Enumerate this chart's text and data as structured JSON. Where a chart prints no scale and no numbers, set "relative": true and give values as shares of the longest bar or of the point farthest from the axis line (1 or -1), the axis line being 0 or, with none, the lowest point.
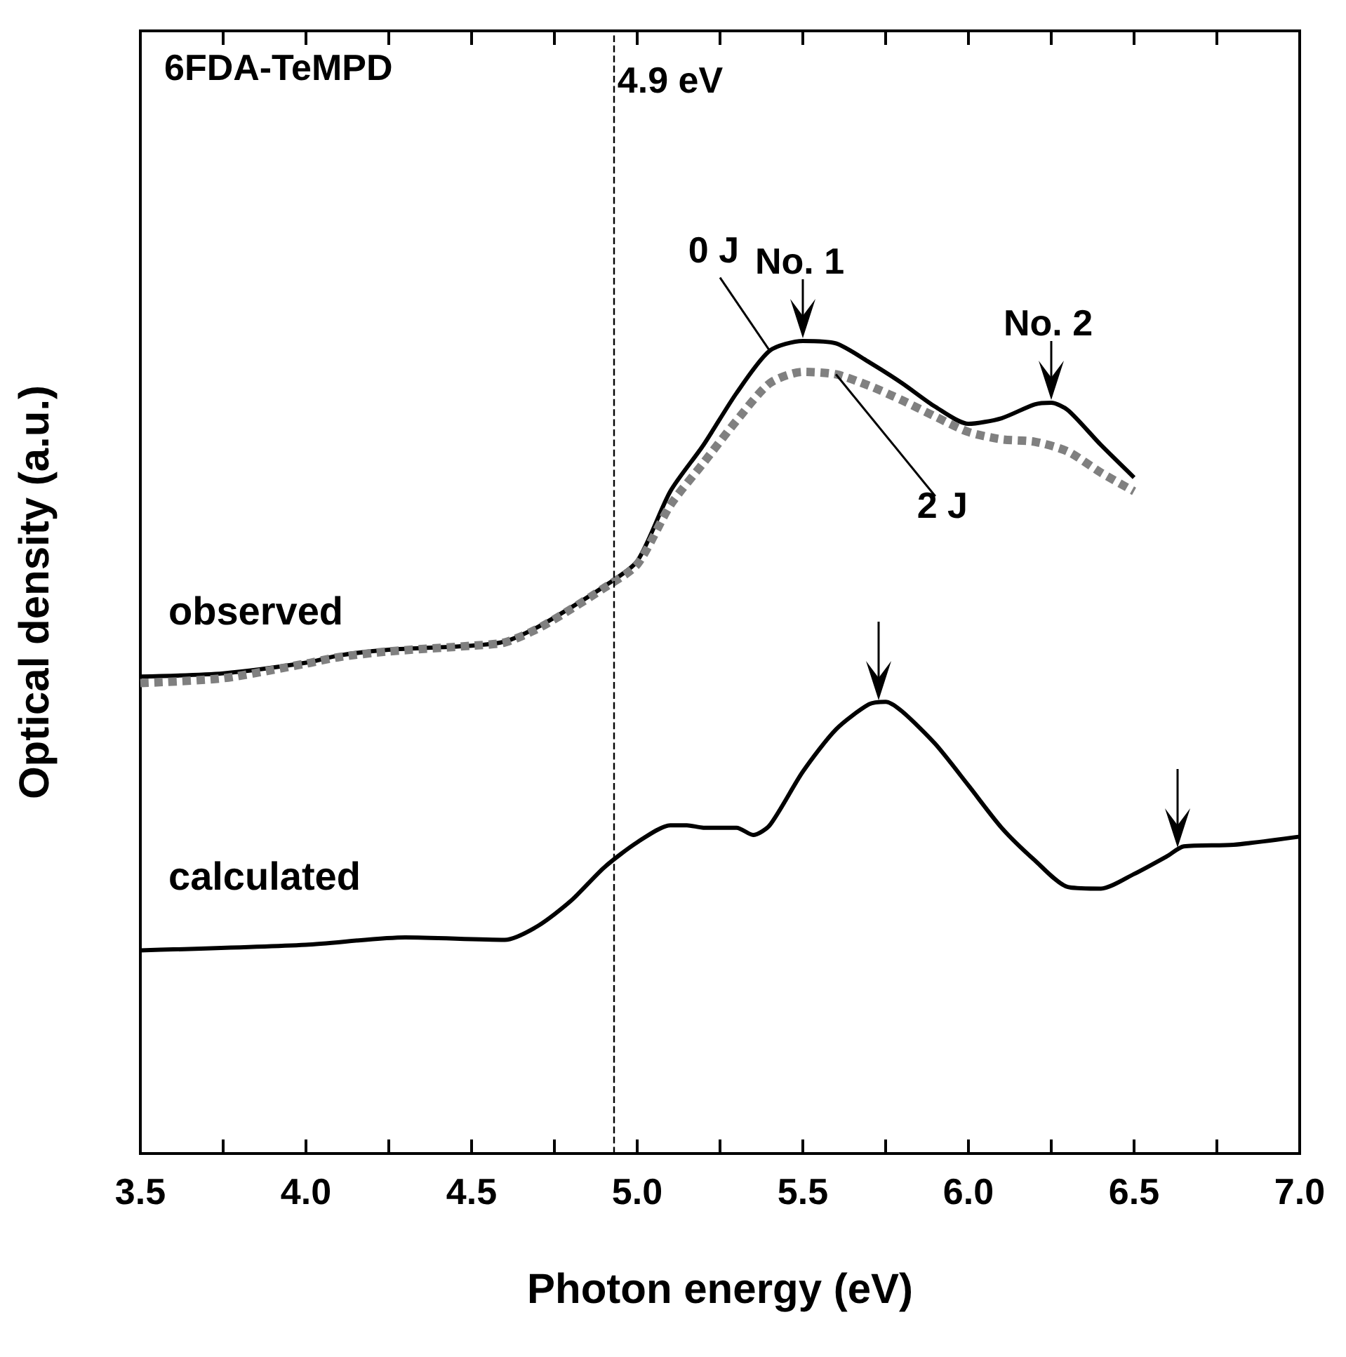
{
  "chart_data": {
    "type": "line",
    "title": "6FDA-TeMPD",
    "xlabel": "Photon energy (eV)",
    "ylabel": "Optical density (a.u.)",
    "relative": true,
    "legend": false,
    "grid": false,
    "marker": "none",
    "line_style": "solid",
    "xlim": [
      3.5,
      7.0
    ],
    "xticks": [
      3.5,
      {
        "value": 3.75,
        "label": null
      },
      {
        "value": 4,
        "label": "4.0"
      },
      {
        "value": 4.25,
        "label": null
      },
      4.5,
      {
        "value": 4.75,
        "label": null
      },
      {
        "value": 5,
        "label": "5.0"
      },
      {
        "value": 5.25,
        "label": null
      },
      5.5,
      {
        "value": 5.75,
        "label": null
      },
      {
        "value": 6,
        "label": "6.0"
      },
      {
        "value": 6.25,
        "label": null
      },
      6.5,
      {
        "value": 6.75,
        "label": null
      },
      {
        "value": 7,
        "label": "7.0"
      }
    ],
    "ref_lines": [
      {
        "axis": "x",
        "value": 4.93,
        "label": "4.9 eV",
        "line_style": "dashed",
        "color": "#000000"
      }
    ],
    "annotations": [
      {
        "text": "observed",
        "x": 3.5,
        "y": 0.587
      },
      {
        "text": "No. 1",
        "x": 5.5,
        "y": 1.0
      },
      {
        "text": "No. 2",
        "x": 6.25,
        "y": 0.924
      }
    ],
    "series": [
      {
        "name": "0 J",
        "color": "#000000",
        "x": [
          3.5,
          3.75,
          4.0,
          4.1,
          4.25,
          4.5,
          4.6,
          4.7,
          4.8,
          4.9,
          5.0,
          5.1,
          5.2,
          5.3,
          5.4,
          5.5,
          5.6,
          5.7,
          5.8,
          5.9,
          6.0,
          6.1,
          6.2,
          6.25,
          6.3,
          6.4,
          6.5
        ],
        "values": [
          0.587,
          0.591,
          0.604,
          0.613,
          0.62,
          0.625,
          0.63,
          0.648,
          0.672,
          0.698,
          0.729,
          0.815,
          0.872,
          0.936,
          0.988,
          1.0,
          0.997,
          0.974,
          0.948,
          0.919,
          0.898,
          0.905,
          0.922,
          0.924,
          0.915,
          0.872,
          0.832
        ]
      },
      {
        "name": "2 J",
        "color": "#808080",
        "line_style": "dotted",
        "x": [
          3.5,
          3.75,
          4.0,
          4.1,
          4.25,
          4.5,
          4.6,
          4.7,
          4.8,
          4.9,
          5.0,
          5.1,
          5.2,
          5.3,
          5.4,
          5.5,
          5.6,
          5.7,
          5.8,
          5.9,
          6.0,
          6.1,
          6.2,
          6.3,
          6.4,
          6.5
        ],
        "values": [
          0.579,
          0.585,
          0.603,
          0.611,
          0.618,
          0.625,
          0.629,
          0.646,
          0.67,
          0.696,
          0.725,
          0.798,
          0.85,
          0.902,
          0.948,
          0.962,
          0.959,
          0.945,
          0.927,
          0.907,
          0.888,
          0.879,
          0.876,
          0.864,
          0.838,
          0.815
        ]
      },
      {
        "name": "calculated",
        "color": "#000000",
        "x": [
          3.5,
          4.0,
          4.3,
          4.6,
          4.7,
          4.8,
          4.9,
          5.0,
          5.1,
          5.15,
          5.2,
          5.3,
          5.35,
          5.4,
          5.5,
          5.6,
          5.7,
          5.75,
          5.8,
          5.9,
          6.0,
          6.1,
          6.2,
          6.3,
          6.4,
          6.5,
          6.6,
          6.65,
          6.8,
          7.0
        ],
        "values": [
          0.25,
          0.257,
          0.266,
          0.263,
          0.28,
          0.311,
          0.352,
          0.383,
          0.404,
          0.404,
          0.401,
          0.401,
          0.392,
          0.404,
          0.47,
          0.522,
          0.553,
          0.556,
          0.544,
          0.504,
          0.453,
          0.401,
          0.361,
          0.328,
          0.326,
          0.344,
          0.366,
          0.378,
          0.38,
          0.39
        ]
      }
    ]
  }
}
